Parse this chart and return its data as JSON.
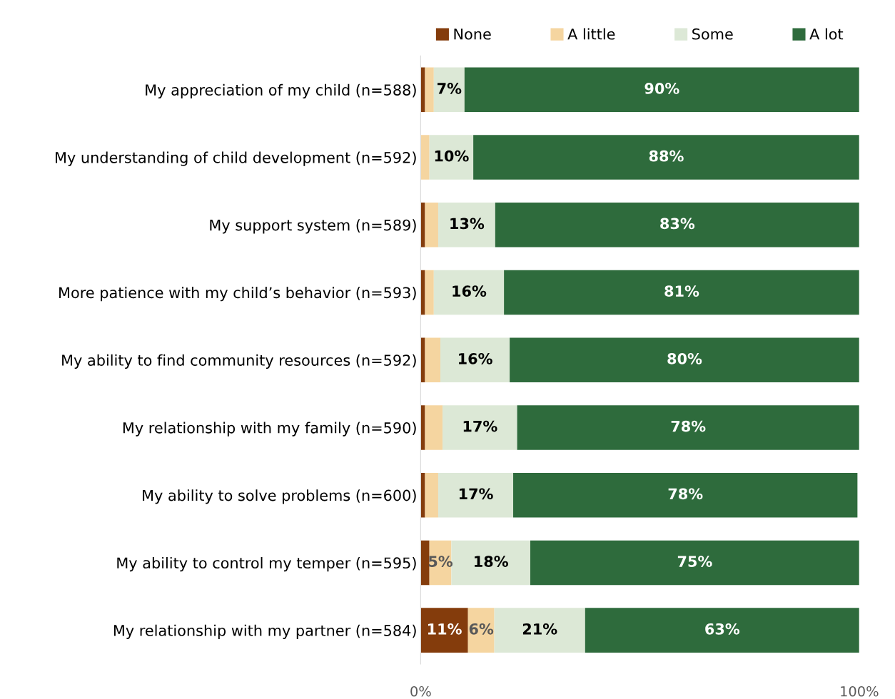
{
  "chart_data": {
    "type": "bar",
    "orientation": "horizontal",
    "stacked": true,
    "categories": [
      "My appreciation of my child (n=588)",
      "My understanding of child development (n=592)",
      "My support system (n=589)",
      "More patience with my child’s behavior (n=593)",
      "My ability to find community resources (n=592)",
      "My relationship with my family (n=590)",
      "My ability to solve problems (n=600)",
      "My ability to control my temper (n=595)",
      "My relationship with my partner (n=584)"
    ],
    "series": [
      {
        "name": "None",
        "color": "#843c0c",
        "values": [
          1,
          0,
          1,
          1,
          1,
          1,
          1,
          2,
          10.8
        ],
        "value_labels": [
          null,
          null,
          null,
          null,
          null,
          null,
          null,
          null,
          "11%"
        ]
      },
      {
        "name": "A little",
        "color": "#f5d5a0",
        "values": [
          2,
          2,
          3,
          2,
          3.5,
          4,
          3,
          5,
          6
        ],
        "value_labels": [
          null,
          null,
          null,
          null,
          null,
          null,
          null,
          "5%",
          "6%"
        ]
      },
      {
        "name": "Some",
        "color": "#dce8d6",
        "values": [
          7,
          10,
          13,
          16,
          15.8,
          17,
          17.1,
          18,
          20.7
        ],
        "value_labels": [
          "7%",
          "10%",
          "13%",
          "16%",
          "16%",
          "17%",
          "17%",
          "18%",
          "21%"
        ]
      },
      {
        "name": "A lot",
        "color": "#2e6b3c",
        "values": [
          90,
          88,
          83,
          81,
          79.7,
          78,
          78.5,
          75,
          62.5
        ],
        "value_labels": [
          "90%",
          "88%",
          "83%",
          "81%",
          "80%",
          "78%",
          "78%",
          "75%",
          "63%"
        ]
      }
    ],
    "xlim": [
      0,
      100
    ],
    "xticks": [
      {
        "value": 0,
        "label": "0%"
      },
      {
        "value": 100,
        "label": "100%"
      }
    ],
    "grid": false,
    "legend": "top"
  }
}
